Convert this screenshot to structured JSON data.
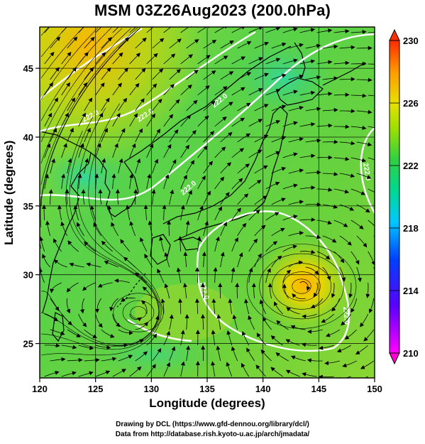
{
  "title": "MSM 03Z26Aug2023 (200.0hPa)",
  "xlabel": "Longitude (degrees)",
  "ylabel": "Latitude  (degrees)",
  "x_ticks": [
    "120",
    "125",
    "130",
    "135",
    "140",
    "145",
    "150"
  ],
  "y_ticks": [
    "25",
    "30",
    "35",
    "40",
    "45"
  ],
  "colorbar": {
    "labels": [
      "230",
      "226",
      "222",
      "218",
      "214",
      "210"
    ],
    "range": [
      210,
      230
    ],
    "colors": [
      "#ff00ff",
      "#0000ff",
      "#00c8ff",
      "#00d27a",
      "#3ccc3c",
      "#a8e000",
      "#ffd200",
      "#ff8c00",
      "#ff3c00"
    ]
  },
  "contour_labels": [
    "222.0",
    "222.0",
    "222.0",
    "222.0",
    "222.0",
    "222.0",
    "222.0"
  ],
  "credit_line1": "Drawing by DCL (https://www.gfd-dennou.org/library/dcl/)",
  "credit_line2": "Data from http://database.rish.kyoto-u.ac.jp/arch/jmadata/",
  "chart_data": {
    "type": "heatmap",
    "variable": "temperature field with wind streamlines",
    "xlim": [
      120,
      150
    ],
    "ylim": [
      22.5,
      48
    ],
    "clim": [
      210,
      230
    ],
    "features": [
      {
        "label": "anticyclonic circulation center",
        "lon": 143.5,
        "lat": 29.5
      },
      {
        "label": "cyclonic eddy",
        "lon": 129,
        "lat": 29
      },
      {
        "label": "warm region",
        "lon": 123,
        "lat": 46
      }
    ]
  }
}
